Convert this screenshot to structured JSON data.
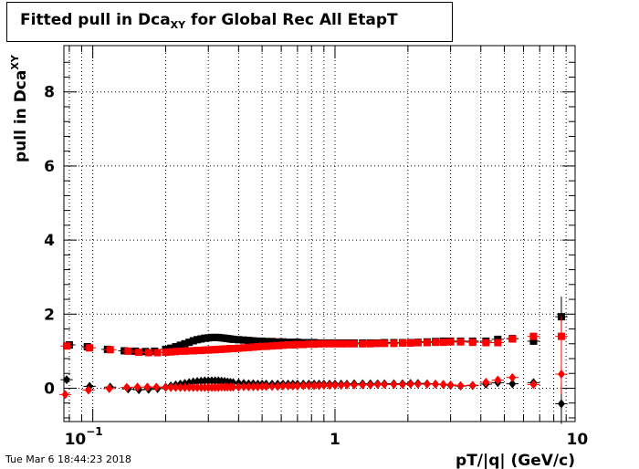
{
  "title": {
    "main": "Fitted pull in Dca",
    "sub": "XY",
    "rest": " for Global Rec All EtapT"
  },
  "timestamp": "Tue Mar  6 18:44:23 2018",
  "chart_data": {
    "type": "scatter",
    "title": "Fitted pull in Dca_XY for Global Rec All EtapT",
    "xlabel": "pT/|q| (GeV/c)",
    "ylabel_main": "pull in Dca",
    "ylabel_sub": "XY",
    "xscale": "log",
    "xlim": [
      0.076,
      9.8
    ],
    "ylim": [
      -0.9,
      9.25
    ],
    "grid": true,
    "x_ticks": [
      {
        "v": 0.1,
        "base": "10",
        "exp": "−1"
      },
      {
        "v": 1,
        "base": "1",
        "exp": ""
      },
      {
        "v": 10,
        "base": "10",
        "exp": ""
      }
    ],
    "y_ticks": [
      {
        "v": 0,
        "label": "0"
      },
      {
        "v": 2,
        "label": "2"
      },
      {
        "v": 4,
        "label": "4"
      },
      {
        "v": 6,
        "label": "6"
      },
      {
        "v": 8,
        "label": "8"
      }
    ],
    "series": [
      {
        "color": "#000000",
        "marker": "square",
        "x": [
          0.08,
          0.095,
          0.115,
          0.135,
          0.15,
          0.165,
          0.18,
          0.2,
          0.21,
          0.22,
          0.23,
          0.24,
          0.25,
          0.26,
          0.27,
          0.28,
          0.29,
          0.3,
          0.31,
          0.32,
          0.33,
          0.34,
          0.35,
          0.36,
          0.37,
          0.38,
          0.4,
          0.42,
          0.44,
          0.46,
          0.48,
          0.5,
          0.52,
          0.55,
          0.58,
          0.61,
          0.64,
          0.67,
          0.7,
          0.74,
          0.78,
          0.82,
          0.86,
          0.9,
          0.95,
          1.0,
          1.06,
          1.12,
          1.2,
          1.3,
          1.4,
          1.5,
          1.6,
          1.75,
          1.9,
          2.05,
          2.2,
          2.4,
          2.6,
          2.8,
          3.0,
          3.3,
          3.7,
          4.2,
          4.7,
          5.4,
          6.6,
          8.6
        ],
        "y": [
          1.17,
          1.12,
          1.05,
          1.01,
          1.0,
          0.99,
          1.0,
          1.05,
          1.08,
          1.12,
          1.16,
          1.2,
          1.24,
          1.28,
          1.31,
          1.33,
          1.35,
          1.36,
          1.37,
          1.37,
          1.37,
          1.36,
          1.35,
          1.34,
          1.33,
          1.32,
          1.31,
          1.3,
          1.29,
          1.28,
          1.27,
          1.27,
          1.26,
          1.26,
          1.25,
          1.25,
          1.24,
          1.24,
          1.24,
          1.23,
          1.23,
          1.23,
          1.22,
          1.22,
          1.22,
          1.22,
          1.22,
          1.22,
          1.22,
          1.22,
          1.22,
          1.22,
          1.23,
          1.23,
          1.23,
          1.23,
          1.24,
          1.25,
          1.26,
          1.27,
          1.27,
          1.27,
          1.27,
          1.27,
          1.32,
          1.34,
          1.27,
          1.93
        ]
      },
      {
        "color": "#ff0000",
        "marker": "square",
        "x": [
          0.078,
          0.097,
          0.118,
          0.14,
          0.155,
          0.17,
          0.185,
          0.2,
          0.21,
          0.22,
          0.23,
          0.24,
          0.25,
          0.26,
          0.27,
          0.28,
          0.29,
          0.3,
          0.31,
          0.32,
          0.33,
          0.34,
          0.35,
          0.36,
          0.37,
          0.38,
          0.4,
          0.42,
          0.44,
          0.46,
          0.48,
          0.5,
          0.52,
          0.55,
          0.58,
          0.61,
          0.64,
          0.67,
          0.7,
          0.74,
          0.78,
          0.82,
          0.86,
          0.9,
          0.95,
          1.0,
          1.06,
          1.12,
          1.2,
          1.3,
          1.4,
          1.5,
          1.6,
          1.75,
          1.9,
          2.05,
          2.2,
          2.4,
          2.6,
          2.8,
          3.0,
          3.3,
          3.7,
          4.2,
          4.7,
          5.4,
          6.6,
          8.6
        ],
        "y": [
          1.14,
          1.09,
          1.04,
          1.0,
          0.97,
          0.96,
          0.96,
          0.97,
          0.98,
          0.99,
          1.0,
          1.0,
          1.01,
          1.01,
          1.02,
          1.02,
          1.03,
          1.03,
          1.04,
          1.04,
          1.05,
          1.05,
          1.06,
          1.06,
          1.07,
          1.07,
          1.08,
          1.09,
          1.1,
          1.11,
          1.12,
          1.13,
          1.13,
          1.14,
          1.15,
          1.16,
          1.17,
          1.17,
          1.18,
          1.18,
          1.19,
          1.19,
          1.2,
          1.2,
          1.2,
          1.2,
          1.2,
          1.2,
          1.2,
          1.2,
          1.2,
          1.21,
          1.21,
          1.21,
          1.22,
          1.22,
          1.23,
          1.23,
          1.24,
          1.24,
          1.25,
          1.25,
          1.24,
          1.23,
          1.23,
          1.33,
          1.4,
          1.4
        ]
      },
      {
        "color": "#000000",
        "marker": "diamond",
        "x": [
          0.078,
          0.097,
          0.118,
          0.14,
          0.155,
          0.17,
          0.185,
          0.2,
          0.21,
          0.22,
          0.23,
          0.24,
          0.25,
          0.26,
          0.27,
          0.28,
          0.29,
          0.3,
          0.31,
          0.32,
          0.33,
          0.34,
          0.35,
          0.36,
          0.37,
          0.38,
          0.4,
          0.42,
          0.44,
          0.46,
          0.48,
          0.5,
          0.52,
          0.55,
          0.58,
          0.61,
          0.64,
          0.67,
          0.7,
          0.74,
          0.78,
          0.82,
          0.86,
          0.9,
          0.95,
          1.0,
          1.06,
          1.12,
          1.2,
          1.3,
          1.4,
          1.5,
          1.6,
          1.75,
          1.9,
          2.05,
          2.2,
          2.4,
          2.6,
          2.8,
          3.0,
          3.3,
          3.7,
          4.2,
          4.7,
          5.4,
          6.6,
          8.6
        ],
        "y": [
          0.23,
          0.05,
          0.03,
          -0.02,
          -0.04,
          -0.03,
          -0.01,
          0.03,
          0.06,
          0.09,
          0.11,
          0.13,
          0.15,
          0.17,
          0.18,
          0.19,
          0.2,
          0.2,
          0.2,
          0.2,
          0.2,
          0.19,
          0.18,
          0.17,
          0.16,
          0.15,
          0.14,
          0.13,
          0.12,
          0.12,
          0.11,
          0.11,
          0.11,
          0.11,
          0.11,
          0.11,
          0.11,
          0.11,
          0.11,
          0.11,
          0.11,
          0.11,
          0.11,
          0.11,
          0.11,
          0.11,
          0.11,
          0.11,
          0.12,
          0.12,
          0.12,
          0.12,
          0.12,
          0.12,
          0.12,
          0.13,
          0.13,
          0.12,
          0.11,
          0.1,
          0.08,
          0.06,
          0.07,
          0.11,
          0.15,
          0.12,
          0.15,
          -0.42
        ]
      },
      {
        "color": "#ff0000",
        "marker": "diamond",
        "x": [
          0.077,
          0.096,
          0.117,
          0.138,
          0.153,
          0.168,
          0.183,
          0.2,
          0.21,
          0.22,
          0.23,
          0.24,
          0.25,
          0.26,
          0.27,
          0.28,
          0.29,
          0.3,
          0.31,
          0.32,
          0.33,
          0.34,
          0.35,
          0.36,
          0.37,
          0.38,
          0.4,
          0.42,
          0.44,
          0.46,
          0.48,
          0.5,
          0.52,
          0.55,
          0.58,
          0.61,
          0.64,
          0.67,
          0.7,
          0.74,
          0.78,
          0.82,
          0.86,
          0.9,
          0.95,
          1.0,
          1.06,
          1.12,
          1.2,
          1.3,
          1.4,
          1.5,
          1.6,
          1.75,
          1.9,
          2.05,
          2.2,
          2.4,
          2.6,
          2.8,
          3.0,
          3.3,
          3.7,
          4.2,
          4.7,
          5.4,
          6.6,
          8.6
        ],
        "y": [
          -0.17,
          -0.05,
          -0.01,
          0.02,
          0.03,
          0.03,
          0.03,
          0.02,
          0.02,
          0.02,
          0.02,
          0.02,
          0.02,
          0.02,
          0.02,
          0.02,
          0.02,
          0.02,
          0.02,
          0.02,
          0.02,
          0.03,
          0.03,
          0.03,
          0.03,
          0.03,
          0.03,
          0.04,
          0.04,
          0.04,
          0.04,
          0.05,
          0.05,
          0.05,
          0.05,
          0.06,
          0.06,
          0.06,
          0.06,
          0.07,
          0.07,
          0.07,
          0.07,
          0.08,
          0.08,
          0.08,
          0.08,
          0.09,
          0.09,
          0.09,
          0.09,
          0.1,
          0.1,
          0.1,
          0.1,
          0.11,
          0.11,
          0.11,
          0.11,
          0.1,
          0.09,
          0.07,
          0.08,
          0.16,
          0.22,
          0.29,
          0.1,
          0.38
        ]
      }
    ]
  }
}
